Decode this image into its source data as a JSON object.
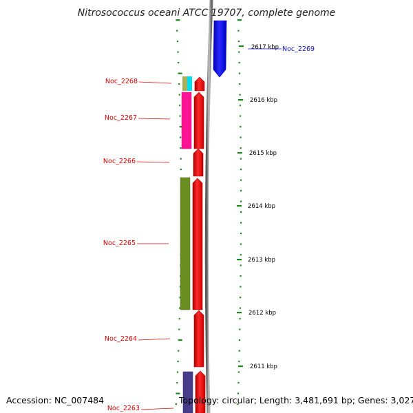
{
  "title": "Nitrosococcus oceani ATCC 19707, complete genome",
  "footer": {
    "accession": "Accession: NC_007484",
    "topology": "Topology: circular; Length: 3,481,691 bp; Genes: 3,027"
  },
  "ruler": [
    {
      "kbp": 2617,
      "label": "2617 kbp"
    },
    {
      "kbp": 2616,
      "label": "2616 kbp"
    },
    {
      "kbp": 2615,
      "label": "2615 kbp"
    },
    {
      "kbp": 2614,
      "label": "2614 kbp"
    },
    {
      "kbp": 2613,
      "label": "2613 kbp"
    },
    {
      "kbp": 2612,
      "label": "2612 kbp"
    },
    {
      "kbp": 2611,
      "label": "2611 kbp"
    }
  ],
  "genes": [
    {
      "name": "Noc_2269",
      "strand": "reverse",
      "color": "#0000ff"
    },
    {
      "name": "Noc_2268",
      "strand": "forward",
      "color": "#ff0000",
      "cog_colors": [
        "#a6b25a",
        "#00e0f0"
      ]
    },
    {
      "name": "Noc_2267",
      "strand": "forward",
      "color": "#ff0000",
      "cog_colors": [
        "#ff1493"
      ]
    },
    {
      "name": "Noc_2266",
      "strand": "forward",
      "color": "#ff0000",
      "cog_colors": []
    },
    {
      "name": "Noc_2265",
      "strand": "forward",
      "color": "#ff0000",
      "cog_colors": [
        "#6b8e23"
      ]
    },
    {
      "name": "Noc_2264",
      "strand": "forward",
      "color": "#ff0000",
      "cog_colors": []
    },
    {
      "name": "Noc_2263",
      "strand": "forward",
      "color": "#ff0000",
      "cog_colors": [
        "#483d8b"
      ]
    }
  ],
  "colors": {
    "forward_gene": "#ff0000",
    "reverse_gene": "#0000ff",
    "backbone": "#888888",
    "ruler_ticks": "#1a8a1a"
  }
}
